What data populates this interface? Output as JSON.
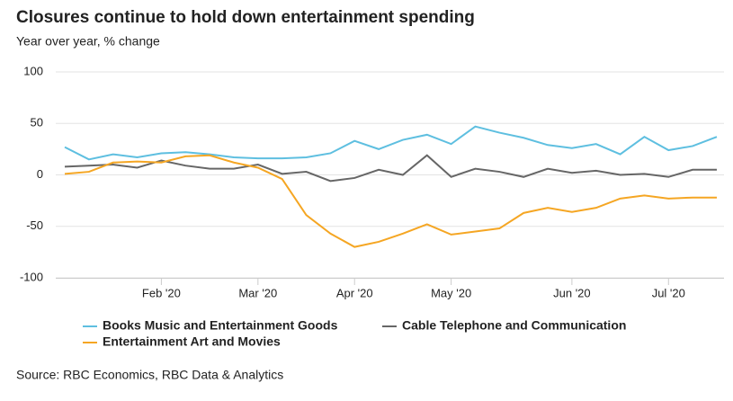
{
  "chart_data": {
    "type": "line",
    "title": "Closures continue to hold down entertainment spending",
    "subtitle": "Year over year, % change",
    "source": "Source: RBC Economics, RBC Data & Analytics",
    "categories": [
      null,
      null,
      null,
      null,
      "Feb '20",
      null,
      null,
      null,
      "Mar '20",
      null,
      null,
      null,
      "Apr '20",
      null,
      null,
      null,
      "May '20",
      null,
      null,
      null,
      null,
      "Jun '20",
      null,
      null,
      null,
      "Jul '20",
      null,
      null
    ],
    "series": [
      {
        "name": "Books Music and Entertainment Goods",
        "color": "#5ebfe0",
        "values": [
          27,
          15,
          20,
          17,
          21,
          22,
          20,
          17,
          16,
          16,
          17,
          21,
          33,
          25,
          34,
          39,
          30,
          47,
          41,
          36,
          29,
          26,
          30,
          20,
          37,
          24,
          28,
          37
        ]
      },
      {
        "name": "Cable Telephone and Communication",
        "color": "#666666",
        "values": [
          8,
          9,
          10,
          7,
          14,
          9,
          6,
          6,
          10,
          1,
          3,
          -6,
          -3,
          5,
          0,
          19,
          -2,
          6,
          3,
          -2,
          6,
          2,
          4,
          0,
          1,
          -2,
          5,
          5
        ]
      },
      {
        "name": "Entertainment Art and Movies",
        "color": "#f5a623",
        "values": [
          1,
          3,
          12,
          13,
          12,
          18,
          19,
          12,
          7,
          -4,
          -39,
          -57,
          -70,
          -65,
          -57,
          -48,
          -58,
          -55,
          -52,
          -37,
          -32,
          -36,
          -32,
          -23,
          -20,
          -23,
          -22,
          -22
        ]
      }
    ],
    "ylim": [
      -100,
      100
    ],
    "yticks": [
      -100,
      -50,
      0,
      50,
      100
    ],
    "grid": true
  }
}
